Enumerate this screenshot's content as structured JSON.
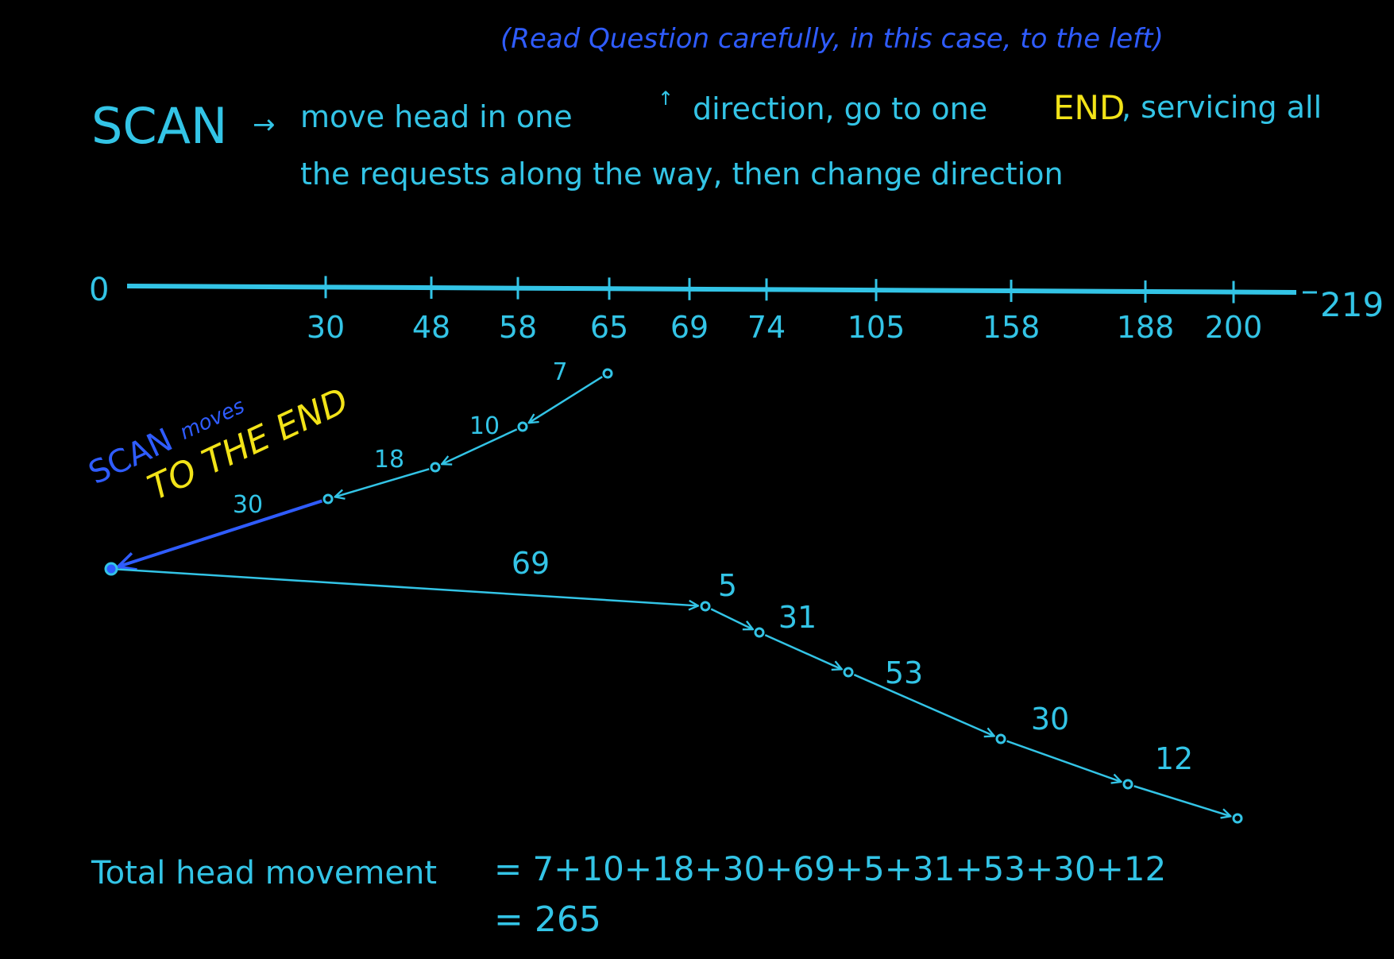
{
  "colors": {
    "background": "#000000",
    "cyan": "#33c4e6",
    "blue": "#2f5cff",
    "yellow": "#f2e318"
  },
  "note": "(Read Question carefully, in this case, to the left)",
  "definition": {
    "term": "SCAN",
    "arrow": "→",
    "line1_before": "move head in one",
    "up_arrow": "↑",
    "line1_mid": "direction, go to one",
    "end_word": "END",
    "line1_after": ", servicing all",
    "line2": "the requests along the way, then change direction"
  },
  "number_line": {
    "start_label": "0",
    "end_label": "219",
    "min": 0,
    "max": 219,
    "ticks": [
      30,
      48,
      58,
      65,
      69,
      74,
      105,
      158,
      188,
      200
    ]
  },
  "path": {
    "start": 65,
    "sequence": [
      65,
      58,
      48,
      30,
      0,
      69,
      74,
      105,
      158,
      188,
      200
    ],
    "step_labels": [
      "7",
      "10",
      "18",
      "30",
      "69",
      "5",
      "31",
      "53",
      "30",
      "12"
    ]
  },
  "annotation": {
    "line1_blue": "SCAN",
    "line1_small": "moves",
    "line2": "TO THE END"
  },
  "total": {
    "label": "Total head movement",
    "expression": "= 7+10+18+30+69+5+31+53+30+12",
    "result": "= 265"
  }
}
